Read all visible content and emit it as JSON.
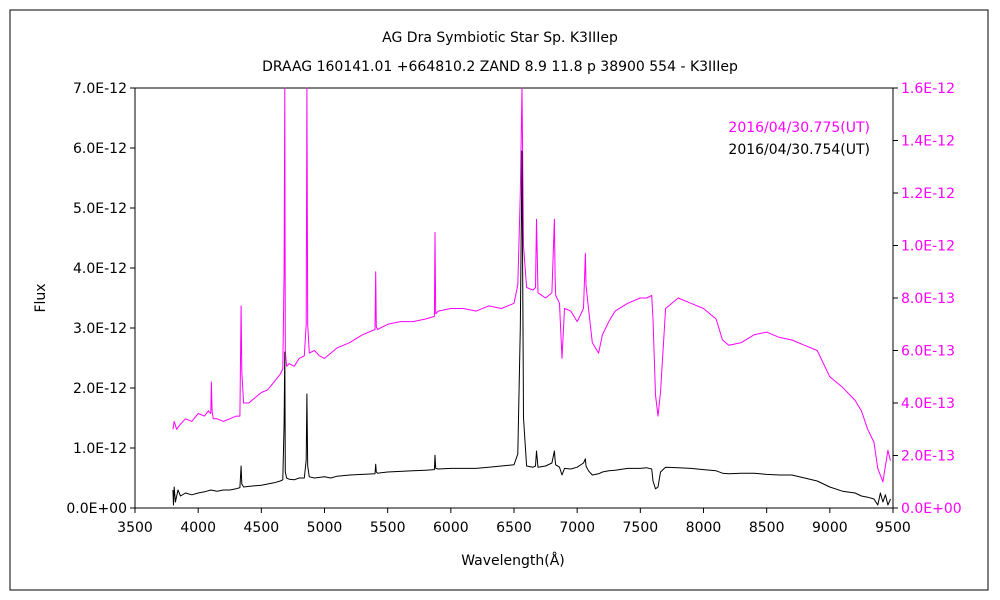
{
  "chart_data": {
    "type": "line",
    "title": "AG Dra    Symbiotic Star    Sp. K3IIIep",
    "subtitle": "DRAAG 160141.01 +664810.2 ZAND 8.9 11.8 p 38900 554 - K3IIIep",
    "xlabel": "Wavelength(Å)",
    "ylabel": "Flux",
    "xlim": [
      3500,
      9500
    ],
    "ylim": [
      0,
      7e-12
    ],
    "y2lim": [
      0,
      1.6e-12
    ],
    "x_ticks": [
      "3500",
      "4000",
      "4500",
      "5000",
      "5500",
      "6000",
      "6500",
      "7000",
      "7500",
      "8000",
      "8500",
      "9000",
      "9500"
    ],
    "y_ticks": [
      "0.0E+00",
      "1.0E-12",
      "2.0E-12",
      "3.0E-12",
      "4.0E-12",
      "5.0E-12",
      "6.0E-12",
      "7.0E-12"
    ],
    "y2_ticks": [
      "0.0E+00",
      "2.0E-13",
      "4.0E-13",
      "6.0E-13",
      "8.0E-13",
      "1.0E-12",
      "1.2E-12",
      "1.4E-12",
      "1.6E-12"
    ],
    "grid": false,
    "legend_position": "top-right",
    "series": [
      {
        "name": "2016/04/30.775(UT)",
        "axis": "right",
        "color": "#ff00ff",
        "x": [
          3800,
          3810,
          3830,
          3860,
          3900,
          3950,
          4000,
          4050,
          4080,
          4100,
          4105,
          4110,
          4120,
          4150,
          4200,
          4250,
          4300,
          4330,
          4340,
          4345,
          4360,
          4400,
          4450,
          4500,
          4550,
          4600,
          4650,
          4670,
          4680,
          4686,
          4690,
          4700,
          4720,
          4760,
          4800,
          4840,
          4855,
          4861,
          4867,
          4880,
          4920,
          4960,
          5000,
          5050,
          5100,
          5200,
          5300,
          5400,
          5405,
          5410,
          5420,
          5500,
          5600,
          5700,
          5800,
          5870,
          5875,
          5880,
          5900,
          6000,
          6100,
          6200,
          6300,
          6400,
          6500,
          6530,
          6550,
          6563,
          6575,
          6600,
          6650,
          6670,
          6678,
          6690,
          6750,
          6800,
          6820,
          6825,
          6830,
          6860,
          6880,
          6900,
          6950,
          7000,
          7050,
          7065,
          7070,
          7090,
          7120,
          7170,
          7200,
          7250,
          7300,
          7400,
          7500,
          7550,
          7590,
          7600,
          7620,
          7640,
          7660,
          7700,
          7800,
          7900,
          8000,
          8100,
          8150,
          8200,
          8300,
          8400,
          8500,
          8600,
          8700,
          8800,
          8900,
          9000,
          9100,
          9200,
          9250,
          9300,
          9350,
          9380,
          9420,
          9460,
          9480
        ],
        "values": [
          3e-13,
          3.3e-13,
          3e-13,
          3.2e-13,
          3.4e-13,
          3.3e-13,
          3.6e-13,
          3.5e-13,
          3.7e-13,
          3.6e-13,
          4.8e-13,
          3.7e-13,
          3.4e-13,
          3.4e-13,
          3.3e-13,
          3.4e-13,
          3.5e-13,
          3.5e-13,
          7.7e-13,
          5.2e-13,
          4e-13,
          4e-13,
          4.2e-13,
          4.4e-13,
          4.5e-13,
          4.8e-13,
          5.1e-13,
          5.3e-13,
          9e-13,
          1.6e-12,
          6e-13,
          5.4e-13,
          5.5e-13,
          5.4e-13,
          5.7e-13,
          5.8e-13,
          7e-13,
          1.6e-12,
          7e-13,
          5.9e-13,
          6e-13,
          5.8e-13,
          5.7e-13,
          5.9e-13,
          6.1e-13,
          6.3e-13,
          6.6e-13,
          6.8e-13,
          9e-13,
          6.9e-13,
          6.8e-13,
          7e-13,
          7.1e-13,
          7.1e-13,
          7.2e-13,
          7.3e-13,
          1.05e-12,
          7.4e-13,
          7.5e-13,
          7.6e-13,
          7.6e-13,
          7.5e-13,
          7.7e-13,
          7.6e-13,
          7.8e-13,
          8.5e-13,
          1.2e-12,
          1.6e-12,
          1e-12,
          8.4e-13,
          8.3e-13,
          8.4e-13,
          1.1e-12,
          8.2e-13,
          8e-13,
          8.2e-13,
          1.1e-12,
          8.8e-13,
          8.1e-13,
          7.8e-13,
          5.7e-13,
          7.6e-13,
          7.5e-13,
          7.1e-13,
          7.6e-13,
          9.7e-13,
          8.5e-13,
          7.6e-13,
          6.3e-13,
          5.9e-13,
          6.6e-13,
          7.1e-13,
          7.5e-13,
          7.8e-13,
          8e-13,
          8e-13,
          8.1e-13,
          7.2e-13,
          4.3e-13,
          3.5e-13,
          4.4e-13,
          7.6e-13,
          8e-13,
          7.8e-13,
          7.6e-13,
          7.2e-13,
          6.4e-13,
          6.2e-13,
          6.3e-13,
          6.6e-13,
          6.7e-13,
          6.5e-13,
          6.4e-13,
          6.2e-13,
          6e-13,
          5e-13,
          4.6e-13,
          4.1e-13,
          3.7e-13,
          3e-13,
          2.5e-13,
          1.5e-13,
          1e-13,
          2.2e-13,
          1.8e-13
        ]
      },
      {
        "name": "2016/04/30.754(UT)",
        "axis": "left",
        "color": "#000000",
        "x": [
          3800,
          3805,
          3810,
          3820,
          3840,
          3860,
          3900,
          3950,
          4000,
          4050,
          4100,
          4150,
          4200,
          4250,
          4300,
          4330,
          4340,
          4345,
          4360,
          4400,
          4500,
          4600,
          4650,
          4670,
          4680,
          4686,
          4690,
          4700,
          4720,
          4760,
          4800,
          4840,
          4855,
          4861,
          4867,
          4880,
          4920,
          5000,
          5050,
          5100,
          5200,
          5300,
          5400,
          5405,
          5410,
          5420,
          5500,
          5600,
          5700,
          5800,
          5870,
          5875,
          5880,
          5900,
          6000,
          6100,
          6200,
          6300,
          6400,
          6500,
          6530,
          6550,
          6563,
          6575,
          6600,
          6650,
          6670,
          6678,
          6690,
          6750,
          6800,
          6820,
          6825,
          6830,
          6860,
          6880,
          6900,
          6950,
          7000,
          7050,
          7065,
          7070,
          7090,
          7120,
          7170,
          7200,
          7250,
          7300,
          7400,
          7500,
          7550,
          7590,
          7600,
          7620,
          7640,
          7660,
          7700,
          7800,
          7900,
          8000,
          8100,
          8150,
          8200,
          8300,
          8400,
          8500,
          8600,
          8700,
          8800,
          8900,
          9000,
          9100,
          9200,
          9250,
          9300,
          9350,
          9380,
          9400,
          9420,
          9440,
          9460,
          9480
        ],
        "values": [
          3e-13,
          5e-14,
          3.5e-13,
          1e-13,
          3e-13,
          2e-13,
          2.5e-13,
          2.2e-13,
          2.5e-13,
          2.7e-13,
          3e-13,
          2.8e-13,
          3e-13,
          3e-13,
          3.2e-13,
          3.4e-13,
          7e-13,
          4e-13,
          3.5e-13,
          3.6e-13,
          3.8e-13,
          4.2e-13,
          4.5e-13,
          4.7e-13,
          1.4e-12,
          2.6e-12,
          6e-13,
          5e-13,
          4.8e-13,
          4.7e-13,
          5e-13,
          5e-13,
          8e-13,
          1.9e-12,
          7e-13,
          5.2e-13,
          5e-13,
          5.2e-13,
          5e-13,
          5.3e-13,
          5.5e-13,
          5.6e-13,
          5.7e-13,
          7.3e-13,
          6e-13,
          5.8e-13,
          6e-13,
          6.1e-13,
          6.2e-13,
          6.3e-13,
          6.4e-13,
          8.8e-13,
          6.6e-13,
          6.5e-13,
          6.6e-13,
          6.6e-13,
          6.6e-13,
          6.8e-13,
          7e-13,
          7.2e-13,
          9e-13,
          3e-12,
          5.95e-12,
          1.5e-12,
          7e-13,
          6.8e-13,
          7e-13,
          9.5e-13,
          6.8e-13,
          7e-13,
          7.5e-13,
          9.5e-13,
          8e-13,
          7.2e-13,
          6.8e-13,
          5.5e-13,
          6.6e-13,
          6.5e-13,
          6.8e-13,
          7.5e-13,
          8.2e-13,
          7e-13,
          6.2e-13,
          5.5e-13,
          5.7e-13,
          6e-13,
          6.2e-13,
          6.3e-13,
          6.6e-13,
          6.6e-13,
          6.7e-13,
          6.5e-13,
          4.5e-13,
          3.2e-13,
          3.5e-13,
          6e-13,
          6.8e-13,
          6.7e-13,
          6.6e-13,
          6.4e-13,
          6.2e-13,
          5.8e-13,
          5.7e-13,
          5.8e-13,
          5.8e-13,
          5.6e-13,
          5.5e-13,
          5.5e-13,
          5e-13,
          4.5e-13,
          3.5e-13,
          2.8e-13,
          2.5e-13,
          2e-13,
          1.8e-13,
          1.5e-13,
          5e-14,
          2.5e-13,
          1e-13,
          2.2e-13,
          5e-14,
          1.5e-13
        ]
      }
    ]
  }
}
